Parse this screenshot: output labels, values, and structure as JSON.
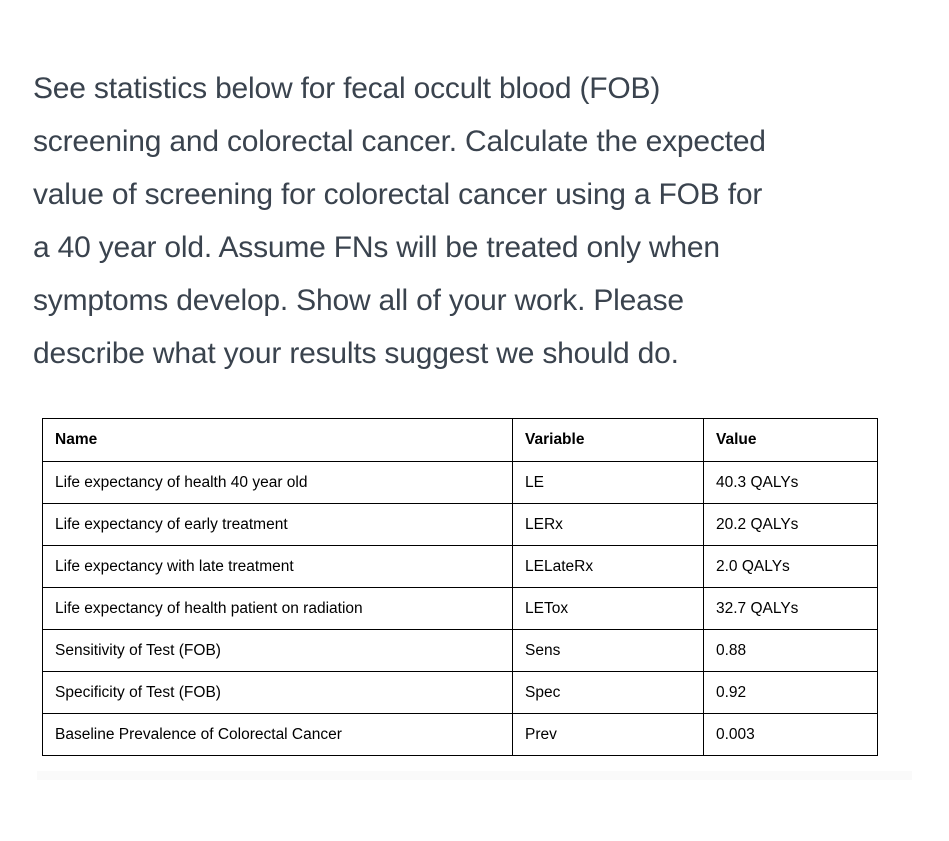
{
  "question": {
    "lines": [
      "See statistics below for fecal occult blood (FOB)",
      "screening and colorectal cancer. Calculate the expected",
      "value of screening for colorectal cancer using a FOB for",
      "a 40 year old. Assume FNs will be treated only when",
      "symptoms develop. Show all of your work. Please",
      "describe what your results suggest we should do."
    ]
  },
  "table": {
    "headers": [
      "Name",
      "Variable",
      "Value"
    ],
    "rows": [
      {
        "name": "Life expectancy of health 40 year old",
        "variable": "LE",
        "value": "40.3 QALYs"
      },
      {
        "name": "Life expectancy of early treatment",
        "variable": "LERx",
        "value": "20.2 QALYs"
      },
      {
        "name": "Life expectancy with late treatment",
        "variable": "LELateRx",
        "value": "2.0 QALYs"
      },
      {
        "name": "Life expectancy of health patient on radiation",
        "variable": "LETox",
        "value": "32.7 QALYs"
      },
      {
        "name": "Sensitivity of Test (FOB)",
        "variable": "Sens",
        "value": "0.88"
      },
      {
        "name": "Specificity of Test (FOB)",
        "variable": "Spec",
        "value": "0.92"
      },
      {
        "name": "Baseline Prevalence of Colorectal Cancer",
        "variable": "Prev",
        "value": "0.003"
      }
    ]
  },
  "colors": {
    "paragraph_text": "#3a434e",
    "table_text": "#000000",
    "table_border": "#000000",
    "background": "#ffffff"
  }
}
